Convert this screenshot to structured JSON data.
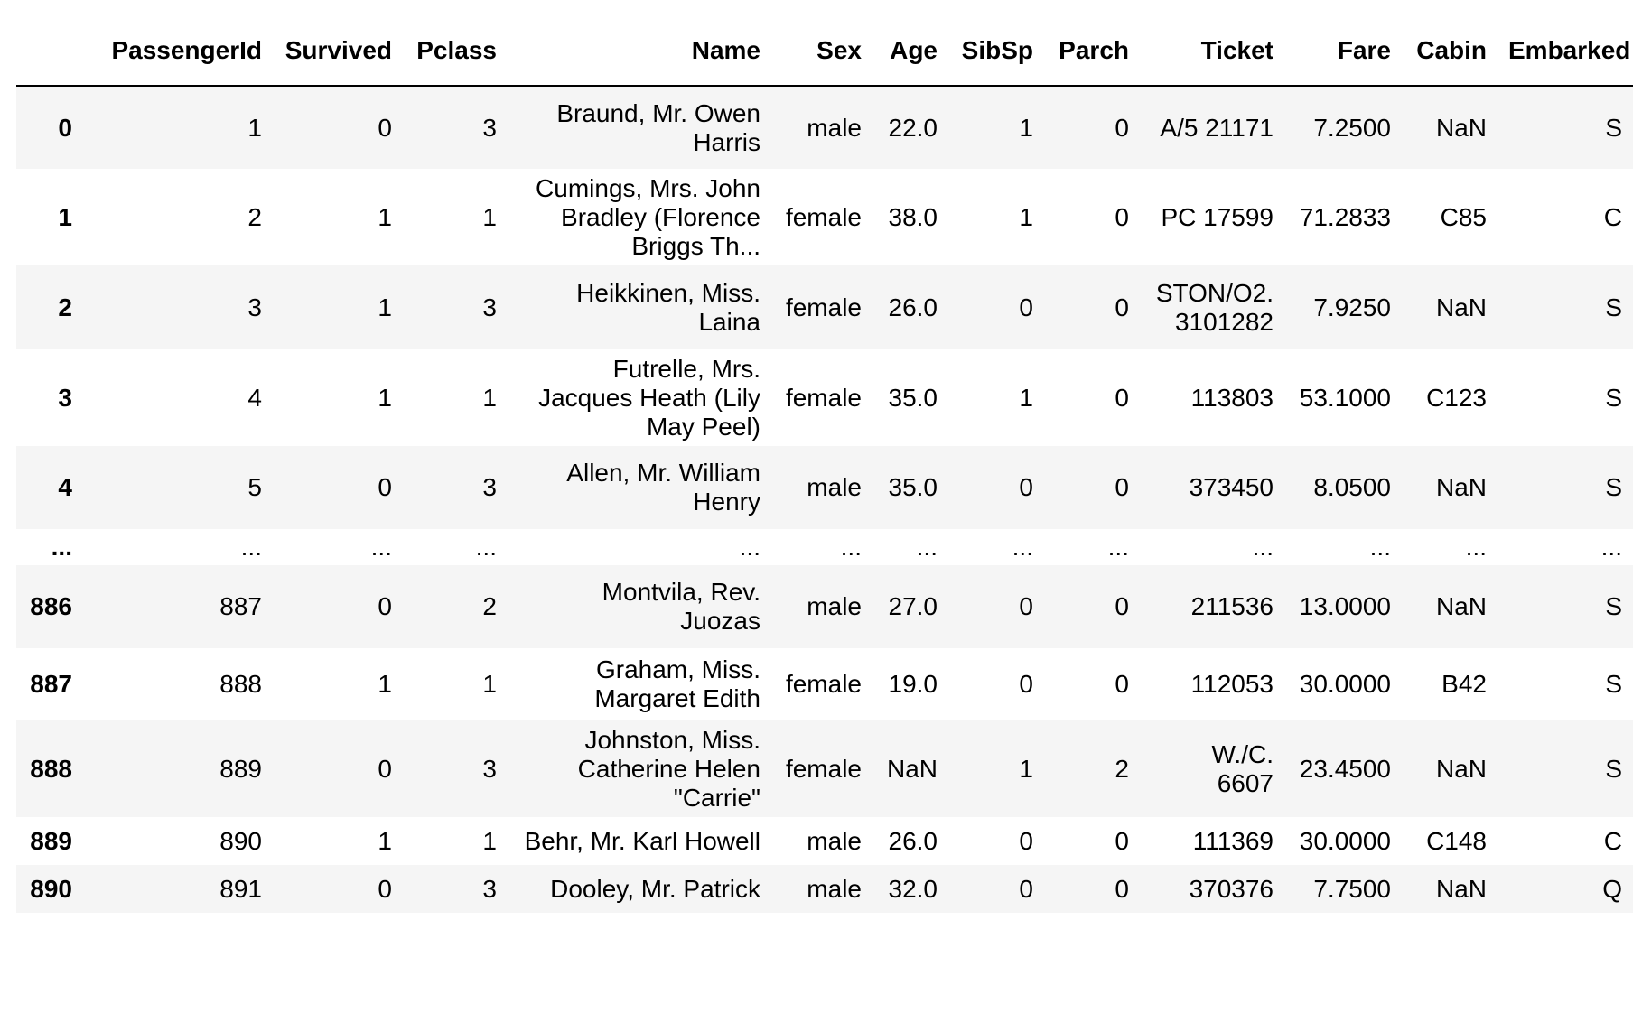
{
  "table": {
    "columns": [
      "",
      "PassengerId",
      "Survived",
      "Pclass",
      "Name",
      "Sex",
      "Age",
      "SibSp",
      "Parch",
      "Ticket",
      "Fare",
      "Cabin",
      "Embarked"
    ],
    "rows": [
      {
        "index": "0",
        "cells": [
          "1",
          "0",
          "3",
          "Braund, Mr. Owen\nHarris",
          "male",
          "22.0",
          "1",
          "0",
          "A/5 21171",
          "7.2500",
          "NaN",
          "S"
        ]
      },
      {
        "index": "1",
        "cells": [
          "2",
          "1",
          "1",
          "Cumings, Mrs. John\nBradley (Florence\nBriggs Th...",
          "female",
          "38.0",
          "1",
          "0",
          "PC 17599",
          "71.2833",
          "C85",
          "C"
        ]
      },
      {
        "index": "2",
        "cells": [
          "3",
          "1",
          "3",
          "Heikkinen, Miss.\nLaina",
          "female",
          "26.0",
          "0",
          "0",
          "STON/O2.\n3101282",
          "7.9250",
          "NaN",
          "S"
        ]
      },
      {
        "index": "3",
        "cells": [
          "4",
          "1",
          "1",
          "Futrelle, Mrs.\nJacques Heath (Lily\nMay Peel)",
          "female",
          "35.0",
          "1",
          "0",
          "113803",
          "53.1000",
          "C123",
          "S"
        ]
      },
      {
        "index": "4",
        "cells": [
          "5",
          "0",
          "3",
          "Allen, Mr. William\nHenry",
          "male",
          "35.0",
          "0",
          "0",
          "373450",
          "8.0500",
          "NaN",
          "S"
        ]
      },
      {
        "index": "...",
        "cells": [
          "...",
          "...",
          "...",
          "...",
          "...",
          "...",
          "...",
          "...",
          "...",
          "...",
          "...",
          "..."
        ]
      },
      {
        "index": "886",
        "cells": [
          "887",
          "0",
          "2",
          "Montvila, Rev.\nJuozas",
          "male",
          "27.0",
          "0",
          "0",
          "211536",
          "13.0000",
          "NaN",
          "S"
        ]
      },
      {
        "index": "887",
        "cells": [
          "888",
          "1",
          "1",
          "Graham, Miss.\nMargaret Edith",
          "female",
          "19.0",
          "0",
          "0",
          "112053",
          "30.0000",
          "B42",
          "S"
        ]
      },
      {
        "index": "888",
        "cells": [
          "889",
          "0",
          "3",
          "Johnston, Miss.\nCatherine Helen\n\"Carrie\"",
          "female",
          "NaN",
          "1",
          "2",
          "W./C.\n6607",
          "23.4500",
          "NaN",
          "S"
        ]
      },
      {
        "index": "889",
        "cells": [
          "890",
          "1",
          "1",
          "Behr, Mr. Karl Howell",
          "male",
          "26.0",
          "0",
          "0",
          "111369",
          "30.0000",
          "C148",
          "C"
        ]
      },
      {
        "index": "890",
        "cells": [
          "891",
          "0",
          "3",
          "Dooley, Mr. Patrick",
          "male",
          "32.0",
          "0",
          "0",
          "370376",
          "7.7500",
          "NaN",
          "Q"
        ]
      }
    ]
  }
}
